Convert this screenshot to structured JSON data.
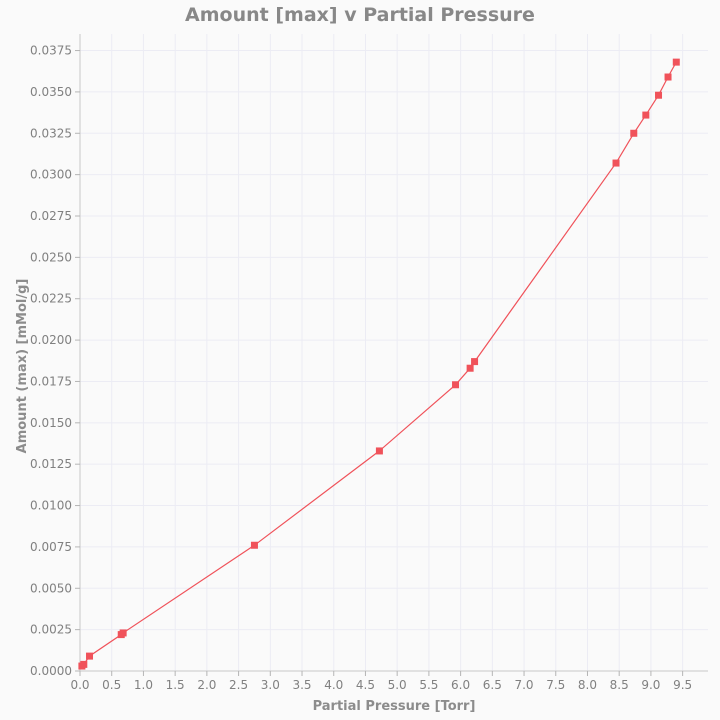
{
  "chart_data": {
    "type": "line",
    "title": "Amount [max] v Partial Pressure",
    "xlabel": "Partial Pressure [Torr]",
    "ylabel": "Amount (max) [mMol/g]",
    "xlim": [
      0,
      9.9
    ],
    "ylim": [
      0,
      0.0385
    ],
    "x_ticks": [
      "0.0",
      "0.5",
      "1.0",
      "1.5",
      "2.0",
      "2.5",
      "3.0",
      "3.5",
      "4.0",
      "4.5",
      "5.0",
      "5.5",
      "6.0",
      "6.5",
      "7.0",
      "7.5",
      "8.0",
      "8.5",
      "9.0",
      "9.5"
    ],
    "y_ticks": [
      "0.0000",
      "0.0025",
      "0.0050",
      "0.0075",
      "0.0100",
      "0.0125",
      "0.0150",
      "0.0175",
      "0.0200",
      "0.0225",
      "0.0250",
      "0.0275",
      "0.0300",
      "0.0325",
      "0.0350",
      "0.0375"
    ],
    "grid": true,
    "series": [
      {
        "color": "#f0525a",
        "marker": "square",
        "x": [
          0.03,
          0.06,
          0.15,
          0.65,
          0.68,
          2.75,
          4.72,
          5.92,
          6.15,
          6.22,
          8.45,
          8.73,
          8.92,
          9.12,
          9.27,
          9.4
        ],
        "y": [
          0.0003,
          0.0004,
          0.0009,
          0.0022,
          0.0023,
          0.0076,
          0.0133,
          0.0173,
          0.0183,
          0.0187,
          0.0307,
          0.0325,
          0.0336,
          0.0348,
          0.0359,
          0.0368
        ]
      }
    ]
  }
}
